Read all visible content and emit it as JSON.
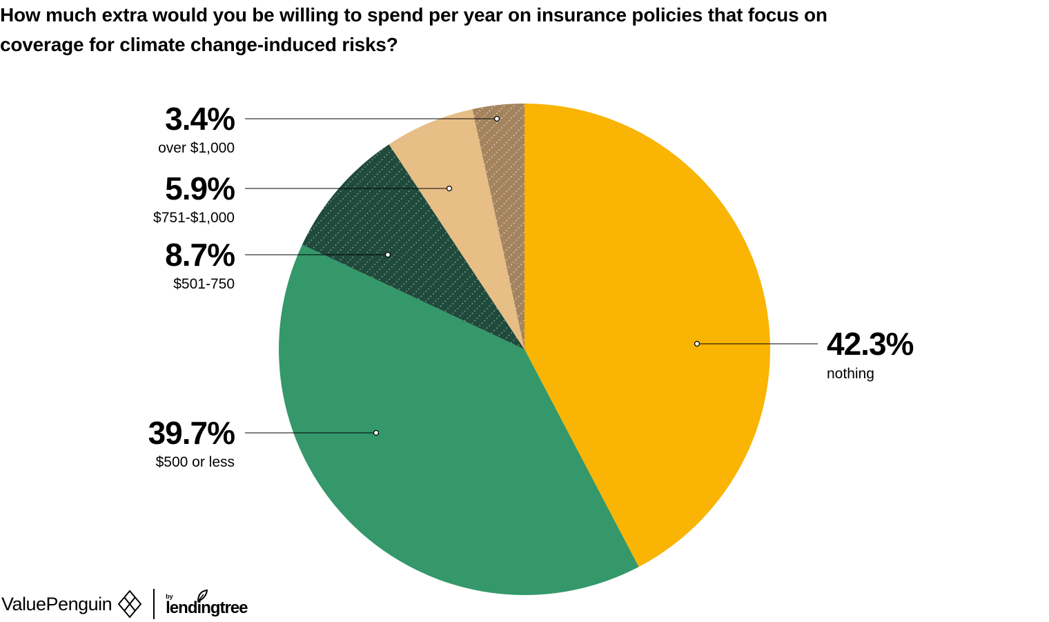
{
  "title_lines": [
    "How much extra would you be willing to spend per year on insurance policies that focus on",
    "coverage for climate change-induced risks?"
  ],
  "chart_data": {
    "type": "pie",
    "title": "How much extra would you be willing to spend per year on insurance policies that focus on coverage for climate change-induced risks?",
    "slices": [
      {
        "label": "nothing",
        "value": 42.3,
        "display": "42.3%",
        "color": "#F9B404",
        "pattern": "none"
      },
      {
        "label": "$500 or less",
        "value": 39.7,
        "display": "39.7%",
        "color": "#34986A",
        "pattern": "none"
      },
      {
        "label": "$501-750",
        "value": 8.7,
        "display": "8.7%",
        "color": "#1F4A3C",
        "pattern": "dotted-diagonal"
      },
      {
        "label": "$751-$1,000",
        "value": 5.9,
        "display": "5.9%",
        "color": "#E6BE86",
        "pattern": "none"
      },
      {
        "label": "over $1,000",
        "value": 3.4,
        "display": "3.4%",
        "color": "#A4845E",
        "pattern": "dotted-diagonal"
      }
    ],
    "start_angle_deg": 0,
    "direction": "clockwise"
  },
  "footer": {
    "brand": "ValuePenguin",
    "by": "by",
    "partner": "lendingtree"
  }
}
